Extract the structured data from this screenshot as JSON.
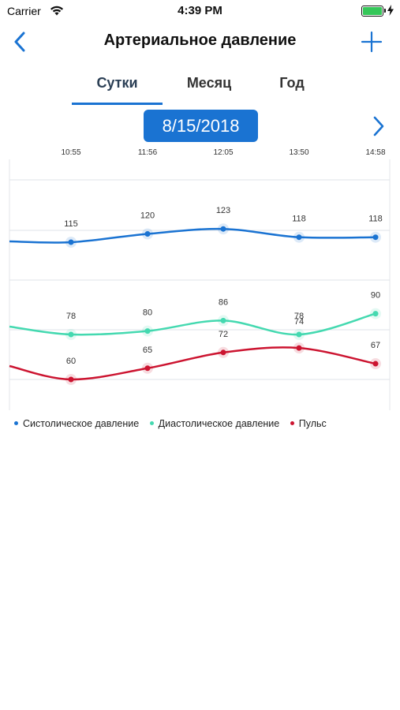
{
  "status_bar": {
    "carrier": "Carrier",
    "time": "4:39 PM",
    "wifi_icon": "wifi-icon",
    "battery_icon": "battery-icon"
  },
  "nav": {
    "title": "Артериальное давление",
    "back_icon": "chevron-left-icon",
    "add_icon": "plus-icon",
    "accent_color": "#1a73d2"
  },
  "tabs": [
    {
      "label": "Сутки",
      "active": true
    },
    {
      "label": "Месяц",
      "active": false
    },
    {
      "label": "Год",
      "active": false
    }
  ],
  "date": {
    "label": "8/15/2018",
    "next_icon": "chevron-right-icon"
  },
  "chart_data": {
    "type": "line",
    "x": [
      "10:55",
      "11:56",
      "12:05",
      "13:50",
      "14:58"
    ],
    "series": [
      {
        "name": "Систолическое давление",
        "color": "#1a73d2",
        "values": [
          115,
          120,
          123,
          118,
          118
        ]
      },
      {
        "name": "Диастолическое давление",
        "color": "#44d9b0",
        "values": [
          78,
          80,
          86,
          78,
          90
        ]
      },
      {
        "name": "Пульс",
        "color": "#cc1430",
        "values": [
          60,
          65,
          72,
          74,
          67
        ]
      }
    ],
    "grid": true,
    "legend_position": "bottom-left"
  }
}
